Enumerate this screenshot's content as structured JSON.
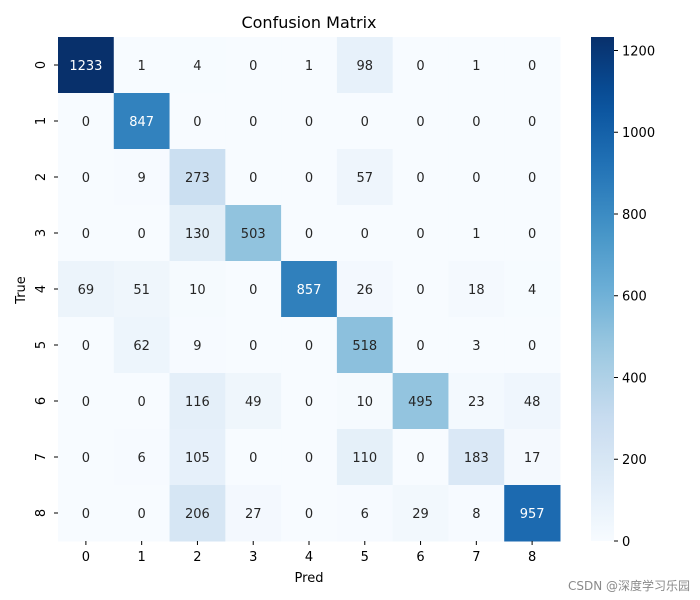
{
  "chart_data": {
    "type": "heatmap",
    "title": "Confusion Matrix",
    "xlabel": "Pred",
    "ylabel": "True",
    "x_categories": [
      "0",
      "1",
      "2",
      "3",
      "4",
      "5",
      "6",
      "7",
      "8"
    ],
    "y_categories": [
      "0",
      "1",
      "2",
      "3",
      "4",
      "5",
      "6",
      "7",
      "8"
    ],
    "values": [
      [
        1233,
        1,
        4,
        0,
        1,
        98,
        0,
        1,
        0
      ],
      [
        0,
        847,
        0,
        0,
        0,
        0,
        0,
        0,
        0
      ],
      [
        0,
        9,
        273,
        0,
        0,
        57,
        0,
        0,
        0
      ],
      [
        0,
        0,
        130,
        503,
        0,
        0,
        0,
        1,
        0
      ],
      [
        69,
        51,
        10,
        0,
        857,
        26,
        0,
        18,
        4
      ],
      [
        0,
        62,
        9,
        0,
        0,
        518,
        0,
        3,
        0
      ],
      [
        0,
        0,
        116,
        49,
        0,
        10,
        495,
        23,
        48
      ],
      [
        0,
        6,
        105,
        0,
        0,
        110,
        0,
        183,
        17
      ],
      [
        0,
        0,
        206,
        27,
        0,
        6,
        29,
        8,
        957
      ]
    ],
    "colormap": "Blues",
    "vmin": 0,
    "vmax": 1233,
    "colorbar_ticks": [
      "0",
      "200",
      "400",
      "600",
      "800",
      "1000",
      "1200"
    ],
    "colorbar_tick_values": [
      0,
      200,
      400,
      600,
      800,
      1000,
      1200
    ]
  },
  "watermark": "CSDN @深度学习乐园"
}
